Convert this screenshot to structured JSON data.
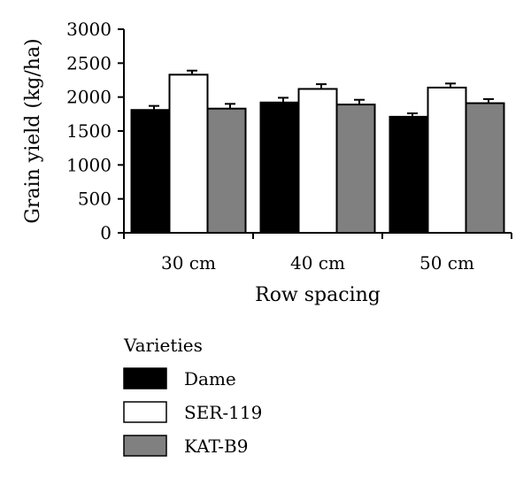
{
  "chart_data": {
    "type": "bar",
    "title": "",
    "xlabel": "Row spacing",
    "ylabel": "Grain yield (kg/ha)",
    "ylim": [
      0,
      3000
    ],
    "yticks": [
      0,
      500,
      1000,
      1500,
      2000,
      2500,
      3000
    ],
    "categories": [
      "30 cm",
      "40 cm",
      "50 cm"
    ],
    "series": [
      {
        "name": "Dame",
        "color": "#000000",
        "values": [
          1810,
          1920,
          1710
        ],
        "errors": [
          60,
          70,
          50
        ]
      },
      {
        "name": "SER-119",
        "color": "#ffffff",
        "values": [
          2330,
          2120,
          2140
        ],
        "errors": [
          60,
          70,
          60
        ]
      },
      {
        "name": "KAT-B9",
        "color": "#808080",
        "values": [
          1830,
          1890,
          1910
        ],
        "errors": [
          70,
          70,
          60
        ]
      }
    ],
    "legend": {
      "title": "Varieties",
      "placement": "bottom-left"
    },
    "grid": false,
    "error_bars": true
  }
}
